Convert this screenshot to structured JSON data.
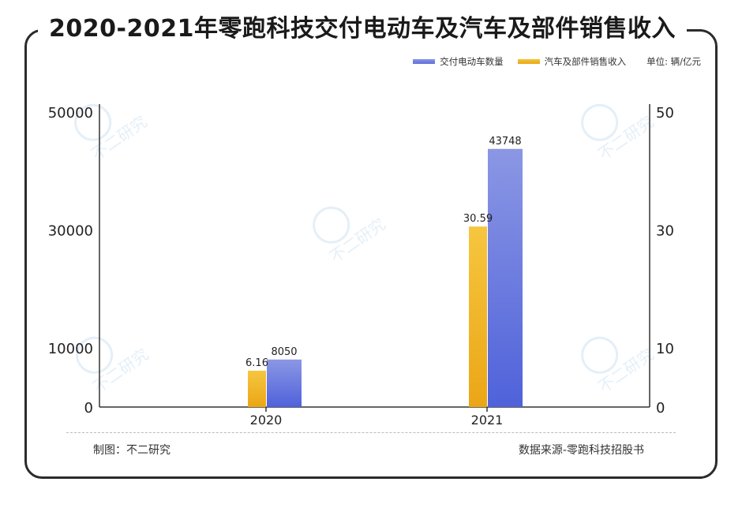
{
  "title": "2020-2021年零跑科技交付电动车及汽车及部件销售收入",
  "legend": {
    "items": [
      {
        "label": "交付电动车数量",
        "color": "#6677dd"
      },
      {
        "label": "汽车及部件销售收入",
        "color": "#f2b51f"
      }
    ],
    "unit": "单位: 辆/亿元"
  },
  "footer": {
    "left": "制图：不二研究",
    "right": "数据来源-零跑科技招股书"
  },
  "watermark": {
    "text": "不二研究"
  },
  "chart_data": {
    "type": "bar",
    "categories": [
      "2020",
      "2021"
    ],
    "series": [
      {
        "name": "汽车及部件销售收入",
        "axis": "right",
        "values": [
          6.16,
          30.59
        ],
        "labels": [
          "6.16",
          "30.59"
        ],
        "color": "#f2b51f"
      },
      {
        "name": "交付电动车数量",
        "axis": "left",
        "values": [
          8050,
          43748
        ],
        "labels": [
          "8050",
          "43748"
        ],
        "color": "#6677dd"
      }
    ],
    "y_left": {
      "ticks": [
        0,
        10000,
        30000,
        50000
      ],
      "labels": [
        "0",
        "10000",
        "30000",
        "50000"
      ],
      "ylim": [
        0,
        50000
      ]
    },
    "y_right": {
      "ticks": [
        0,
        10,
        30,
        50
      ],
      "labels": [
        "0",
        "10",
        "30",
        "50"
      ],
      "ylim": [
        0,
        50
      ]
    },
    "grid": false,
    "legend_position": "top-right"
  }
}
